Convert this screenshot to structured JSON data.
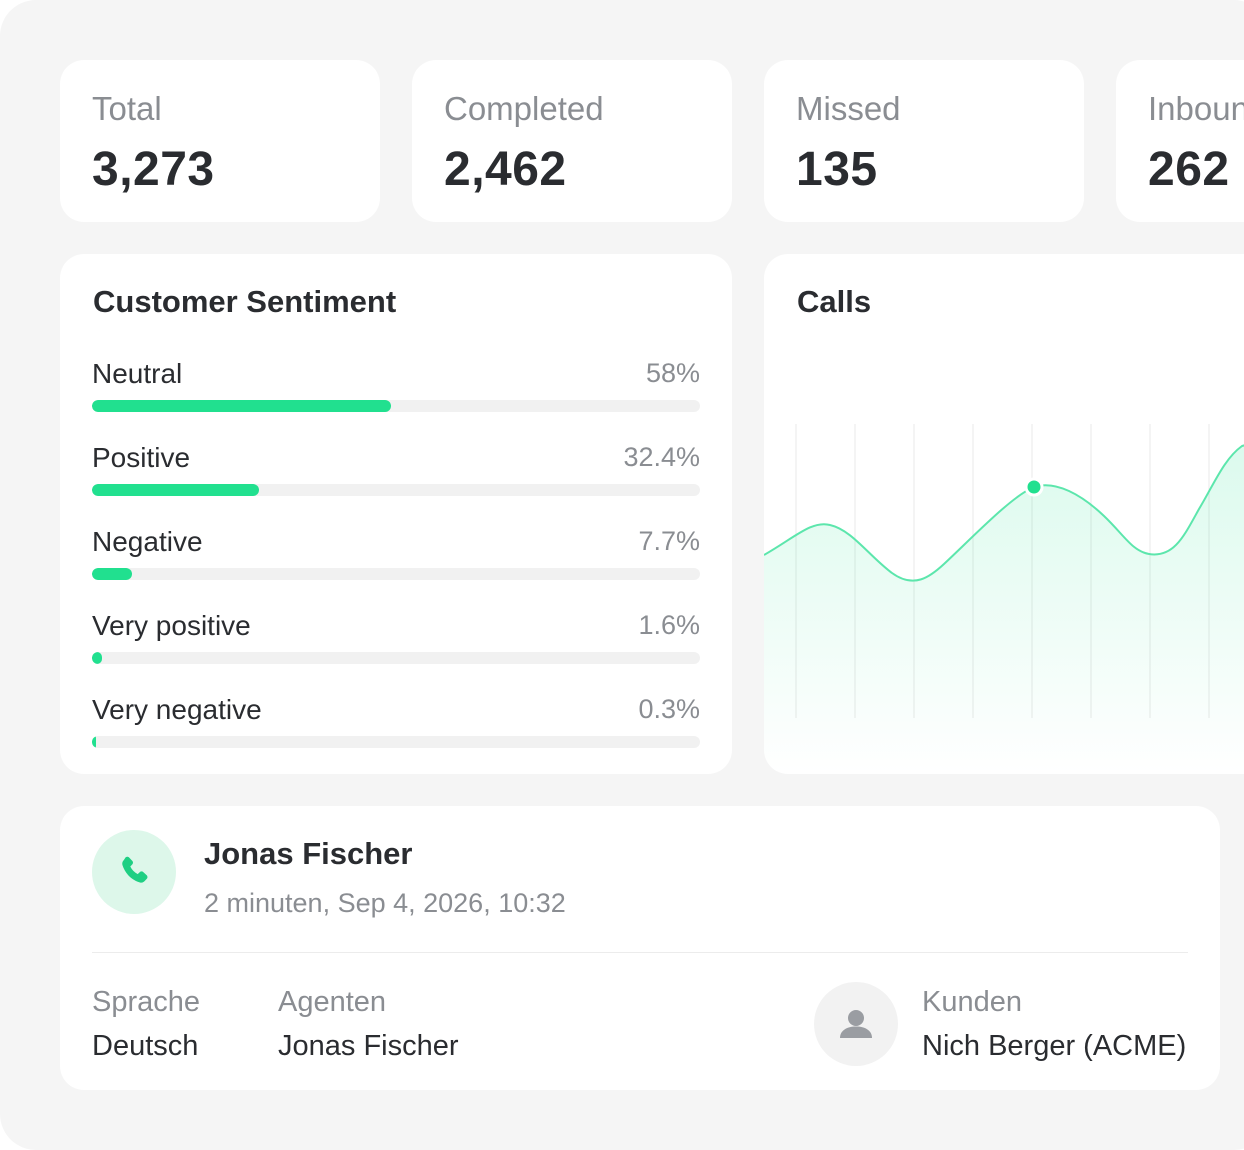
{
  "stats": [
    {
      "label": "Total",
      "value": "3,273"
    },
    {
      "label": "Completed",
      "value": "2,462"
    },
    {
      "label": "Missed",
      "value": "135"
    },
    {
      "label": "Inbound",
      "value": "262"
    }
  ],
  "sentiment": {
    "title": "Customer Sentiment",
    "items": [
      {
        "label": "Neutral",
        "percent_text": "58%",
        "fraction": 0.58
      },
      {
        "label": "Positive",
        "percent_text": "32.4%",
        "fraction": 0.324
      },
      {
        "label": "Negative",
        "percent_text": "7.7%",
        "fraction": 0.077
      },
      {
        "label": "Very positive",
        "percent_text": "1.6%",
        "fraction": 0.016
      },
      {
        "label": "Very negative",
        "percent_text": "0.3%",
        "fraction": 0.003
      }
    ]
  },
  "calls": {
    "title": "Calls"
  },
  "call_detail": {
    "name": "Jonas Fischer",
    "subtitle": "2 minuten, Sep 4, 2026, 10:32",
    "language_label": "Sprache",
    "language_value": "Deutsch",
    "agent_label": "Agenten",
    "agent_value": "Jonas Fischer",
    "customer_label": "Kunden",
    "customer_value": "Nich Berger (ACME)"
  },
  "colors": {
    "accent": "#21e08f",
    "icon_bg": "#ddf7ea",
    "muted_text": "#8a8d92",
    "background": "#f5f5f5"
  },
  "icons": {
    "call": "phone-icon",
    "customer": "person-icon"
  }
}
